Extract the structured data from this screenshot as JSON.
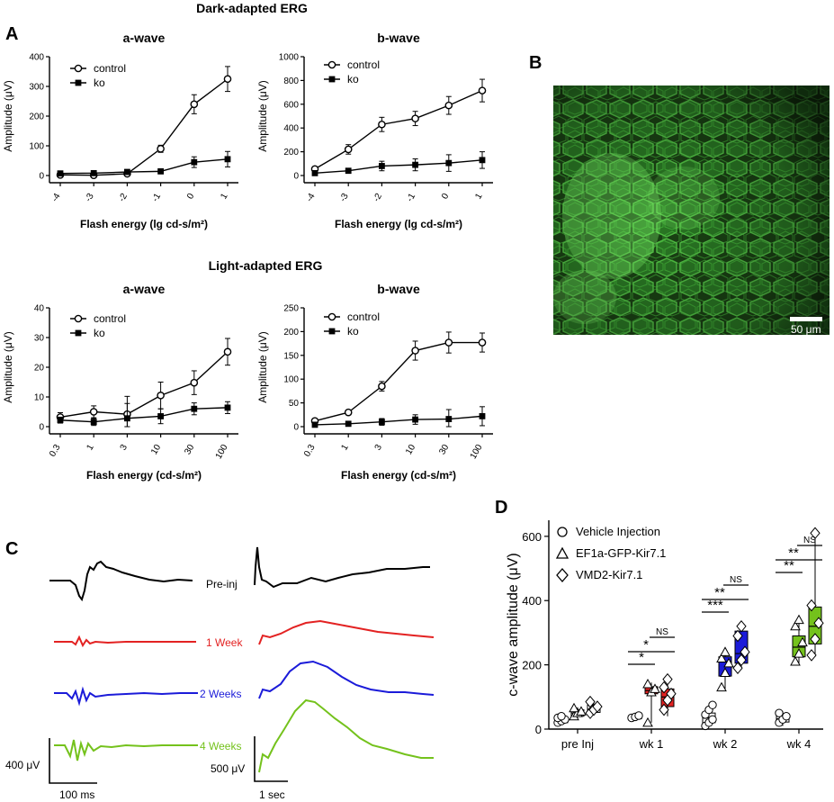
{
  "figure": {
    "dark_header": "Dark-adapted ERG",
    "light_header": "Light-adapted ERG",
    "panel_labels": {
      "A": "A",
      "B": "B",
      "C": "C",
      "D": "D"
    }
  },
  "panel_b": {
    "scale_bar_label": "50 μm",
    "colors": {
      "background": "#0c140a",
      "cell": "#3fbf3a",
      "bright": "#72f060"
    }
  },
  "panel_c": {
    "trace_labels": [
      "Pre-inj",
      "1 Week",
      "2 Weeks",
      "4 Weeks"
    ],
    "trace_colors": [
      "#000000",
      "#e32222",
      "#1b1bd9",
      "#74c21c"
    ],
    "scale_a_amp": "400 μV",
    "scale_a_time": "100 ms",
    "scale_b_amp": "500 μV",
    "scale_b_time": "1 sec"
  },
  "chart_data": [
    {
      "id": "dark_a",
      "type": "line",
      "title": "a-wave",
      "xlabel": "Flash energy (lg cd-s/m²)",
      "ylabel": "Amplitude (μV)",
      "categories": [
        "-4",
        "-3",
        "-2",
        "-1",
        "0",
        "1"
      ],
      "ylim": [
        0,
        400
      ],
      "yticks": [
        0,
        100,
        200,
        300,
        400
      ],
      "series": [
        {
          "name": "control",
          "values": [
            2,
            1,
            6,
            90,
            240,
            325
          ],
          "errors": [
            10,
            8,
            8,
            12,
            32,
            42
          ]
        },
        {
          "name": "ko",
          "values": [
            7,
            8,
            12,
            14,
            45,
            55
          ],
          "errors": [
            8,
            6,
            8,
            6,
            18,
            26
          ]
        }
      ]
    },
    {
      "id": "dark_b",
      "type": "line",
      "title": "b-wave",
      "xlabel": "Flash energy (lg cd-s/m²)",
      "ylabel": "Amplitude (μV)",
      "categories": [
        "-4",
        "-3",
        "-2",
        "-1",
        "0",
        "1"
      ],
      "ylim": [
        0,
        1000
      ],
      "yticks": [
        0,
        200,
        400,
        600,
        800,
        1000
      ],
      "series": [
        {
          "name": "control",
          "values": [
            55,
            220,
            430,
            480,
            590,
            715
          ],
          "errors": [
            10,
            40,
            60,
            60,
            75,
            95
          ]
        },
        {
          "name": "ko",
          "values": [
            20,
            40,
            80,
            90,
            105,
            130
          ],
          "errors": [
            10,
            15,
            40,
            50,
            70,
            70
          ]
        }
      ]
    },
    {
      "id": "light_a",
      "type": "line",
      "title": "a-wave",
      "xlabel": "Flash energy (cd-s/m²)",
      "ylabel": "Amplitude (μV)",
      "categories": [
        "0.3",
        "1",
        "3",
        "10",
        "30",
        "100"
      ],
      "ylim": [
        0,
        40
      ],
      "yticks": [
        0,
        10,
        20,
        30,
        40
      ],
      "series": [
        {
          "name": "control",
          "values": [
            3.2,
            5,
            4.2,
            10.5,
            14.8,
            25.2
          ],
          "errors": [
            1.5,
            2,
            6,
            4.5,
            4,
            4.5
          ]
        },
        {
          "name": "ko",
          "values": [
            2.2,
            1.6,
            2.8,
            3.5,
            6,
            6.4
          ],
          "errors": [
            1,
            1.2,
            5,
            2.5,
            2,
            2
          ]
        }
      ]
    },
    {
      "id": "light_b",
      "type": "line",
      "title": "b-wave",
      "xlabel": "Flash energy (cd-s/m²)",
      "ylabel": "Amplitude (μV)",
      "categories": [
        "0.3",
        "1",
        "3",
        "10",
        "30",
        "100"
      ],
      "ylim": [
        0,
        250
      ],
      "yticks": [
        0,
        50,
        100,
        150,
        200,
        250
      ],
      "series": [
        {
          "name": "control",
          "values": [
            12,
            30,
            85,
            160,
            177,
            177
          ],
          "errors": [
            4,
            5,
            10,
            20,
            22,
            20
          ]
        },
        {
          "name": "ko",
          "values": [
            4,
            6,
            10,
            15,
            16,
            22
          ],
          "errors": [
            3,
            4,
            7,
            10,
            20,
            20
          ]
        }
      ]
    },
    {
      "id": "cwave",
      "type": "box",
      "ylabel": "c-wave amplitude (μV)",
      "categories": [
        "pre Inj",
        "wk 1",
        "wk 2",
        "wk 4"
      ],
      "ylim": [
        0,
        650
      ],
      "yticks": [
        0,
        200,
        400,
        600
      ],
      "groups": [
        "Vehicle Injection",
        "EF1a-GFP-Kir7.1",
        "VMD2-Kir7.1"
      ],
      "group_colors": {
        "pre Inj": [
          "#ffffff",
          "#ffffff",
          "#ffffff"
        ],
        "wk 1": [
          "#ffffff",
          "#e32222",
          "#e32222"
        ],
        "wk 2": [
          "#ffffff",
          "#1b1bd9",
          "#1b1bd9"
        ],
        "wk 4": [
          "#ffffff",
          "#74c21c",
          "#74c21c"
        ]
      },
      "boxes": {
        "pre Inj": [
          [
            14,
            20,
            28,
            34,
            40
          ],
          [
            36,
            40,
            50,
            60,
            68
          ],
          [
            45,
            52,
            62,
            75,
            90
          ]
        ],
        "wk 1": [
          [
            28,
            32,
            36,
            40,
            44
          ],
          [
            20,
            110,
            120,
            132,
            145
          ],
          [
            40,
            70,
            100,
            125,
            160
          ]
        ],
        "wk 2": [
          [
            5,
            20,
            35,
            50,
            75
          ],
          [
            125,
            165,
            210,
            225,
            245
          ],
          [
            185,
            205,
            235,
            305,
            325
          ]
        ],
        "wk 4": [
          [
            10,
            22,
            32,
            42,
            55
          ],
          [
            205,
            225,
            255,
            290,
            345
          ],
          [
            225,
            265,
            320,
            380,
            610
          ]
        ]
      },
      "points": {
        "pre Inj": [
          [
            20,
            25,
            30,
            35,
            40
          ],
          [
            40,
            50,
            55,
            65
          ],
          [
            50,
            60,
            70,
            85
          ]
        ],
        "wk 1": [
          [
            35,
            38,
            42
          ],
          [
            20,
            115,
            125,
            140
          ],
          [
            60,
            90,
            110,
            130,
            155
          ]
        ],
        "wk 2": [
          [
            10,
            20,
            30,
            45,
            60,
            75
          ],
          [
            130,
            175,
            205,
            220,
            240
          ],
          [
            190,
            215,
            240,
            290,
            320
          ]
        ],
        "wk 4": [
          [
            20,
            30,
            40,
            50
          ],
          [
            210,
            235,
            270,
            320,
            340
          ],
          [
            230,
            280,
            330,
            385,
            610
          ]
        ]
      },
      "significance": [
        {
          "category": "wk 1",
          "labels": [
            "*",
            "*",
            "NS"
          ]
        },
        {
          "category": "wk 2",
          "labels": [
            "***",
            "**",
            "NS"
          ]
        },
        {
          "category": "wk 4",
          "labels": [
            "**",
            "**",
            "NS"
          ]
        }
      ]
    }
  ]
}
